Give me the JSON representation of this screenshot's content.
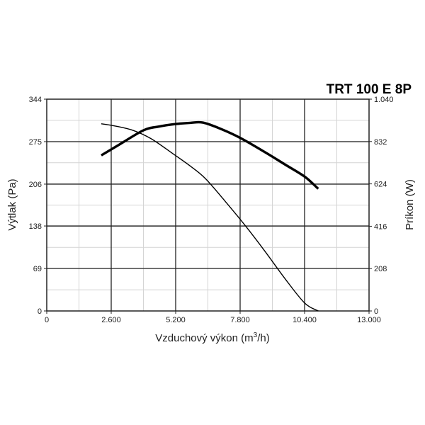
{
  "chart_data": {
    "type": "line",
    "title": "TRT 100 E 8P",
    "xlabel": "Vzduchový výkon (m",
    "xlabel_sup": "3",
    "xlabel_suffix": "/h)",
    "ylabel": "Výtlak (Pa)",
    "y2label": "Príkon (W)",
    "xlim": [
      0,
      13000
    ],
    "ylim": [
      0,
      344
    ],
    "y2lim": [
      0,
      1040
    ],
    "x_ticks": [
      0,
      2600,
      5200,
      7800,
      10400,
      13000
    ],
    "x_tick_labels": [
      "0",
      "2.600",
      "5.200",
      "7.800",
      "10.400",
      "13.000"
    ],
    "y_ticks": [
      0,
      69,
      138,
      206,
      275,
      344
    ],
    "y_tick_labels": [
      "0",
      "69",
      "138",
      "206",
      "275",
      "344"
    ],
    "y2_ticks": [
      0,
      208,
      416,
      624,
      832,
      1040
    ],
    "y2_tick_labels": [
      "0",
      "208",
      "416",
      "624",
      "832",
      "1.040"
    ],
    "grid": true,
    "series": [
      {
        "axis": "left",
        "stroke": "#000000",
        "x": [
          2200,
          2800,
          3500,
          4200,
          5000,
          5800,
          6400,
          7200,
          8000,
          8800,
          9600,
          10400,
          10950
        ],
        "y": [
          304,
          300,
          293,
          280,
          258,
          235,
          215,
          178,
          139,
          97,
          53,
          13,
          0
        ]
      },
      {
        "axis": "right",
        "stroke": "#000000",
        "x": [
          2200,
          2900,
          3900,
          4500,
          5200,
          5800,
          6300,
          7000,
          7800,
          8800,
          9600,
          10400,
          10950
        ],
        "y": [
          764,
          815,
          887,
          905,
          918,
          924,
          925,
          895,
          850,
          780,
          720,
          660,
          600
        ]
      }
    ]
  }
}
